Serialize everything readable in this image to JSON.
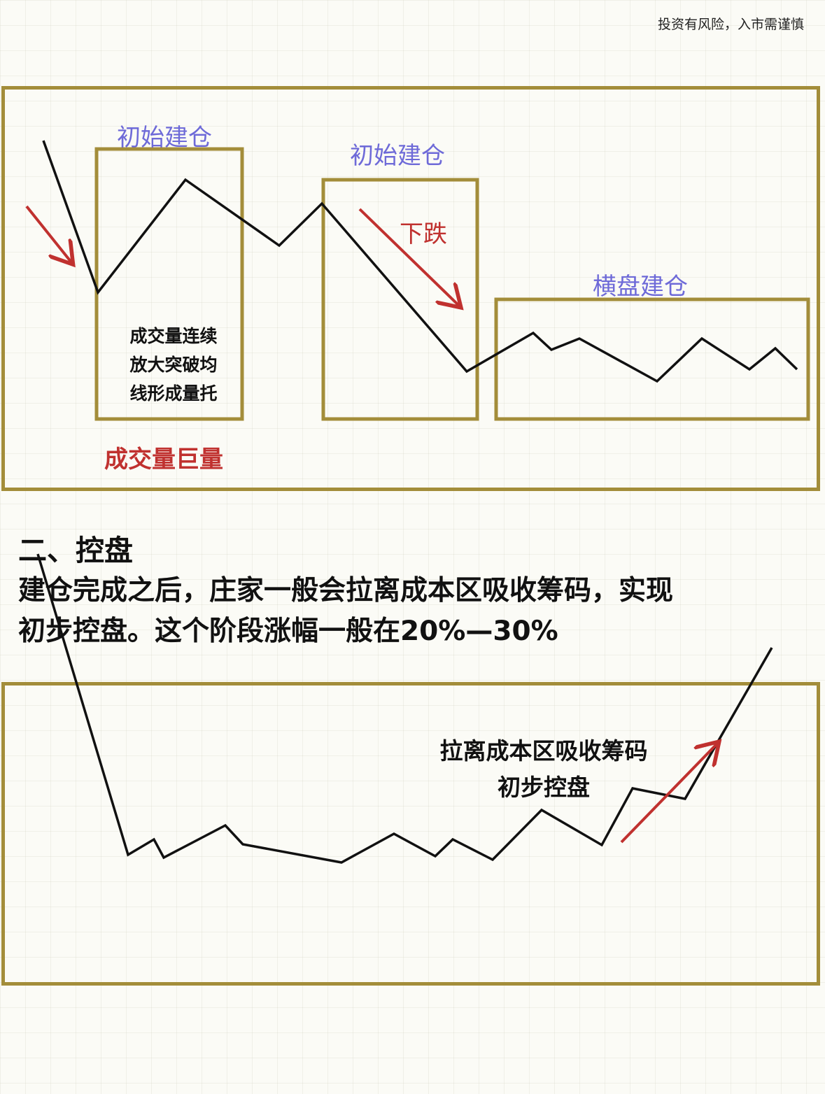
{
  "disclaimer": "投资有风险，入市需谨慎",
  "panel1": {
    "box1_title": "初始建仓",
    "box2_title": "初始建仓",
    "box3_title": "横盘建仓",
    "fall_label": "下跌",
    "volume_note": [
      "成交量连续",
      "放大突破均",
      "线形成量托"
    ],
    "volume_label": "成交量巨量"
  },
  "section2": {
    "heading": "二、控盘",
    "text_line1": "建仓完成之后，庄家一般会拉离成本区吸收筹码，实现",
    "text_line2": "初步控盘。这个阶段涨幅一般在20%—30%"
  },
  "panel2": {
    "note_line1": "拉离成本区吸收筹码",
    "note_line2": "初步控盘"
  },
  "colors": {
    "frame": "#a38d3a",
    "arrow": "#c0312f",
    "title_blue": "#6e6ad8",
    "line": "#111111"
  }
}
